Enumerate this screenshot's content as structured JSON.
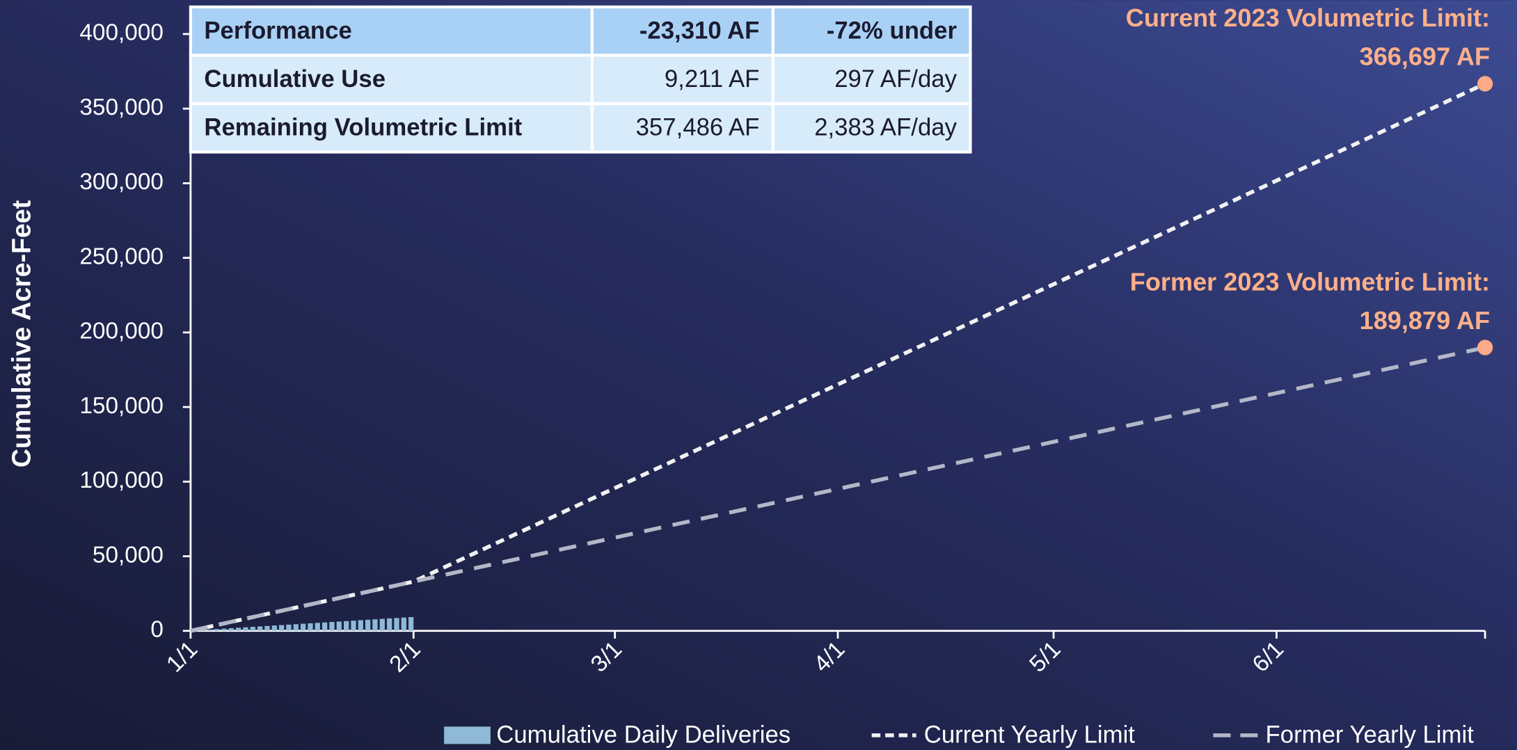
{
  "chart_data": {
    "type": "combo",
    "y_label": "Cumulative Acre-Feet",
    "xlim": [
      0,
      180
    ],
    "xticks": [
      {
        "value": 0,
        "label": "1/1"
      },
      {
        "value": 31,
        "label": "2/1"
      },
      {
        "value": 59,
        "label": "3/1"
      },
      {
        "value": 90,
        "label": "4/1"
      },
      {
        "value": 120,
        "label": "5/1"
      },
      {
        "value": 151,
        "label": "6/1"
      },
      {
        "value": 180,
        "label": ""
      }
    ],
    "ylim": [
      0,
      400000
    ],
    "yticks": [
      0,
      {
        "value": 50000,
        "label": "50,000"
      },
      {
        "value": 100000,
        "label": "100,000"
      },
      {
        "value": 150000,
        "label": "150,000"
      },
      {
        "value": 200000,
        "label": "200,000"
      },
      {
        "value": 250000,
        "label": "250,000"
      },
      {
        "value": 300000,
        "label": "300,000"
      },
      {
        "value": 350000,
        "label": "350,000"
      },
      {
        "value": 400000,
        "label": "400,000"
      }
    ],
    "series": [
      {
        "name": "Cumulative Daily Deliveries",
        "type": "bar",
        "color": "#8fb9d6",
        "x": [
          1,
          2,
          3,
          4,
          5,
          6,
          7,
          8,
          9,
          10,
          11,
          12,
          13,
          14,
          15,
          16,
          17,
          18,
          19,
          20,
          21,
          22,
          23,
          24,
          25,
          26,
          27,
          28,
          29,
          30,
          31
        ],
        "values": [
          297,
          594,
          891,
          1188,
          1485,
          1782,
          2079,
          2376,
          2673,
          2970,
          3267,
          3564,
          3861,
          4158,
          4455,
          4752,
          5049,
          5346,
          5643,
          5940,
          6237,
          6534,
          6831,
          7128,
          7425,
          7722,
          8019,
          8316,
          8613,
          8910,
          9211
        ]
      },
      {
        "name": "Current Yearly Limit",
        "type": "line",
        "color": "#f2f2f2",
        "dash": "short",
        "marker_color": "#ffaa88",
        "x": [
          0,
          31,
          180
        ],
        "values": [
          0,
          33000,
          366697
        ],
        "annotation": [
          "Current 2023 Volumetric Limit:",
          "366,697 AF"
        ]
      },
      {
        "name": "Former Yearly Limit",
        "type": "line",
        "color": "#b3b7c8",
        "dash": "long",
        "marker_color": "#ffaa88",
        "x": [
          0,
          31,
          180
        ],
        "values": [
          0,
          33000,
          189879
        ],
        "annotation": [
          "Former 2023 Volumetric Limit:",
          "189,879 AF"
        ]
      }
    ],
    "table": {
      "rows": [
        [
          "Performance",
          "-23,310 AF",
          "-72% under"
        ],
        [
          "Cumulative Use",
          "9,211 AF",
          "297 AF/day"
        ],
        [
          "Remaining Volumetric Limit",
          "357,486 AF",
          "2,383 AF/day"
        ]
      ]
    }
  }
}
